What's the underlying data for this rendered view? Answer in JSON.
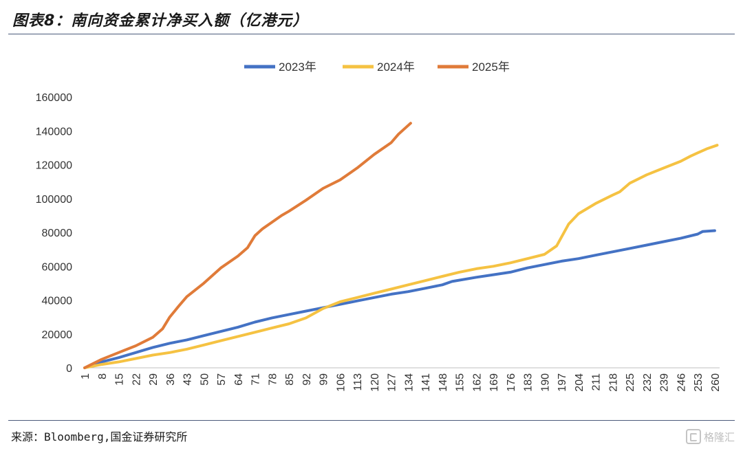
{
  "header": {
    "title": "图表8：南向资金累计净买入额（亿港元）"
  },
  "footer": {
    "source": "来源：Bloomberg,国金证券研究所",
    "watermark": "格隆汇"
  },
  "chart_data": {
    "type": "line",
    "title": "",
    "xlabel": "",
    "ylabel": "",
    "ylim": [
      0,
      160000
    ],
    "yticks": [
      0,
      20000,
      40000,
      60000,
      80000,
      100000,
      120000,
      140000,
      160000
    ],
    "xlim": [
      1,
      262
    ],
    "xticks": [
      1,
      8,
      15,
      22,
      29,
      36,
      43,
      50,
      57,
      64,
      71,
      78,
      85,
      92,
      99,
      106,
      113,
      120,
      127,
      134,
      141,
      148,
      155,
      162,
      169,
      176,
      183,
      190,
      197,
      204,
      211,
      218,
      225,
      232,
      239,
      246,
      253,
      260
    ],
    "grid": false,
    "legend_position": "top-center",
    "series": [
      {
        "name": "2023年",
        "color": "#4472C4",
        "points": [
          [
            1,
            0
          ],
          [
            8,
            3500
          ],
          [
            15,
            6000
          ],
          [
            22,
            9000
          ],
          [
            29,
            12000
          ],
          [
            36,
            14500
          ],
          [
            43,
            16500
          ],
          [
            50,
            19000
          ],
          [
            57,
            21500
          ],
          [
            64,
            24000
          ],
          [
            71,
            27000
          ],
          [
            78,
            29500
          ],
          [
            85,
            31500
          ],
          [
            92,
            33500
          ],
          [
            99,
            35500
          ],
          [
            106,
            37500
          ],
          [
            113,
            39500
          ],
          [
            120,
            41500
          ],
          [
            127,
            43500
          ],
          [
            134,
            45000
          ],
          [
            141,
            47000
          ],
          [
            148,
            49000
          ],
          [
            152,
            51000
          ],
          [
            162,
            53500
          ],
          [
            169,
            55000
          ],
          [
            176,
            56500
          ],
          [
            183,
            59000
          ],
          [
            190,
            61000
          ],
          [
            197,
            63000
          ],
          [
            204,
            64500
          ],
          [
            211,
            66500
          ],
          [
            218,
            68500
          ],
          [
            225,
            70500
          ],
          [
            232,
            72500
          ],
          [
            239,
            74500
          ],
          [
            246,
            76500
          ],
          [
            253,
            79000
          ],
          [
            255,
            80500
          ],
          [
            260,
            81000
          ]
        ]
      },
      {
        "name": "2024年",
        "color": "#F5C242",
        "points": [
          [
            1,
            0
          ],
          [
            8,
            2000
          ],
          [
            15,
            3500
          ],
          [
            22,
            5500
          ],
          [
            29,
            7500
          ],
          [
            36,
            9000
          ],
          [
            43,
            11000
          ],
          [
            50,
            13500
          ],
          [
            57,
            16000
          ],
          [
            64,
            18500
          ],
          [
            71,
            21000
          ],
          [
            78,
            23500
          ],
          [
            85,
            26000
          ],
          [
            92,
            29500
          ],
          [
            99,
            35000
          ],
          [
            106,
            39000
          ],
          [
            113,
            41500
          ],
          [
            120,
            44000
          ],
          [
            127,
            46500
          ],
          [
            134,
            49000
          ],
          [
            141,
            51500
          ],
          [
            148,
            54000
          ],
          [
            155,
            56500
          ],
          [
            162,
            58500
          ],
          [
            169,
            60000
          ],
          [
            176,
            62000
          ],
          [
            183,
            64500
          ],
          [
            190,
            67000
          ],
          [
            195,
            72000
          ],
          [
            200,
            85000
          ],
          [
            204,
            91000
          ],
          [
            211,
            97000
          ],
          [
            218,
            102000
          ],
          [
            221,
            104000
          ],
          [
            225,
            109000
          ],
          [
            232,
            114000
          ],
          [
            239,
            118000
          ],
          [
            246,
            122000
          ],
          [
            250,
            125000
          ],
          [
            253,
            127000
          ],
          [
            257,
            129500
          ],
          [
            261,
            131500
          ]
        ]
      },
      {
        "name": "2025年",
        "color": "#E07B39",
        "points": [
          [
            1,
            0
          ],
          [
            8,
            5000
          ],
          [
            15,
            9000
          ],
          [
            22,
            13000
          ],
          [
            29,
            18000
          ],
          [
            33,
            23000
          ],
          [
            36,
            30000
          ],
          [
            40,
            37000
          ],
          [
            43,
            42000
          ],
          [
            50,
            50000
          ],
          [
            57,
            59000
          ],
          [
            64,
            66000
          ],
          [
            68,
            71000
          ],
          [
            71,
            78000
          ],
          [
            74,
            82000
          ],
          [
            78,
            86000
          ],
          [
            82,
            90000
          ],
          [
            85,
            92500
          ],
          [
            92,
            99000
          ],
          [
            99,
            106000
          ],
          [
            106,
            111000
          ],
          [
            113,
            118000
          ],
          [
            120,
            126000
          ],
          [
            127,
            133000
          ],
          [
            130,
            138000
          ],
          [
            135,
            144500
          ]
        ]
      }
    ]
  }
}
